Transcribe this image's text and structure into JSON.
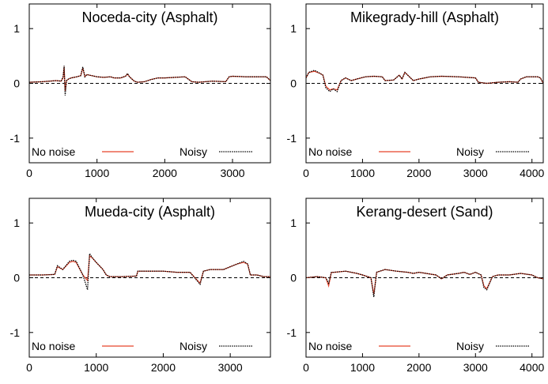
{
  "chart_data": [
    {
      "type": "line",
      "title": "Noceda-city (Asphalt)",
      "xlim": [
        0,
        3560
      ],
      "ylim": [
        -1.45,
        1.45
      ],
      "xticks": [
        0,
        1000,
        2000,
        3000
      ],
      "yticks": [
        1,
        0,
        -1
      ],
      "zero_line": true,
      "legend_position": "bottom",
      "series": [
        {
          "name": "No noise",
          "color": "#e8432a",
          "style": "solid",
          "x": [
            0,
            200,
            400,
            470,
            500,
            515,
            530,
            550,
            580,
            620,
            700,
            760,
            790,
            820,
            850,
            1000,
            1100,
            1200,
            1250,
            1350,
            1420,
            1450,
            1480,
            1550,
            1600,
            1700,
            1800,
            1900,
            2000,
            2300,
            2400,
            2500,
            2700,
            2900,
            2950,
            3000,
            3200,
            3400,
            3500,
            3560
          ],
          "y": [
            0.02,
            0.03,
            0.05,
            0.04,
            0.1,
            0.3,
            -0.15,
            0.05,
            0.08,
            0.1,
            0.12,
            0.14,
            0.28,
            0.12,
            0.16,
            0.12,
            0.11,
            0.12,
            0.1,
            0.1,
            0.13,
            0.17,
            0.12,
            0.04,
            0.02,
            0.03,
            0.07,
            0.1,
            0.1,
            0.12,
            0.03,
            0.02,
            0.04,
            0.03,
            0.12,
            0.13,
            0.12,
            0.12,
            0.12,
            0.05
          ]
        },
        {
          "name": "Noisy",
          "color": "#000000",
          "style": "dotted",
          "x": [
            0,
            200,
            400,
            470,
            500,
            515,
            530,
            550,
            580,
            620,
            700,
            760,
            790,
            820,
            850,
            1000,
            1100,
            1200,
            1250,
            1350,
            1420,
            1450,
            1480,
            1550,
            1600,
            1700,
            1800,
            1900,
            2000,
            2300,
            2400,
            2500,
            2700,
            2900,
            2950,
            3000,
            3200,
            3400,
            3500,
            3560
          ],
          "y": [
            0.02,
            0.03,
            0.05,
            0.04,
            0.12,
            0.32,
            -0.22,
            0.05,
            0.08,
            0.1,
            0.12,
            0.14,
            0.3,
            0.12,
            0.16,
            0.12,
            0.11,
            0.12,
            0.1,
            0.1,
            0.13,
            0.18,
            0.12,
            0.04,
            0.02,
            0.03,
            0.07,
            0.1,
            0.1,
            0.12,
            0.03,
            0.02,
            0.04,
            0.03,
            0.12,
            0.13,
            0.12,
            0.12,
            0.12,
            0.05
          ]
        }
      ]
    },
    {
      "type": "line",
      "title": "Mikegrady-hill (Asphalt)",
      "xlim": [
        0,
        4200
      ],
      "ylim": [
        -1.45,
        1.45
      ],
      "xticks": [
        0,
        1000,
        2000,
        3000,
        4000
      ],
      "yticks": [
        1,
        0,
        -1
      ],
      "zero_line": true,
      "legend_position": "bottom",
      "series": [
        {
          "name": "No noise",
          "color": "#e8432a",
          "style": "solid",
          "x": [
            0,
            50,
            150,
            250,
            300,
            350,
            420,
            480,
            550,
            620,
            700,
            800,
            900,
            1050,
            1200,
            1350,
            1400,
            1550,
            1650,
            1700,
            1750,
            1800,
            1900,
            2000,
            2100,
            2200,
            2400,
            2700,
            3000,
            3050,
            3200,
            3400,
            3600,
            3750,
            3800,
            3900,
            4000,
            4100,
            4150,
            4200
          ],
          "y": [
            0.1,
            0.2,
            0.22,
            0.18,
            0.15,
            -0.05,
            -0.12,
            -0.1,
            -0.12,
            0.05,
            0.1,
            0.05,
            0.08,
            0.12,
            0.13,
            0.12,
            0.05,
            0.06,
            0.15,
            0.08,
            0.2,
            0.15,
            0.05,
            0.08,
            0.1,
            0.12,
            0.13,
            0.12,
            0.1,
            0.02,
            0.0,
            0.02,
            0.03,
            0.02,
            0.08,
            0.12,
            0.12,
            0.12,
            0.1,
            0.0
          ]
        },
        {
          "name": "Noisy",
          "color": "#000000",
          "style": "dotted",
          "x": [
            0,
            50,
            150,
            250,
            300,
            350,
            420,
            480,
            550,
            620,
            700,
            800,
            900,
            1050,
            1200,
            1350,
            1400,
            1550,
            1650,
            1700,
            1750,
            1800,
            1900,
            2000,
            2100,
            2200,
            2400,
            2700,
            3000,
            3050,
            3200,
            3400,
            3600,
            3750,
            3800,
            3900,
            4000,
            4100,
            4150,
            4200
          ],
          "y": [
            0.1,
            0.2,
            0.24,
            0.18,
            0.15,
            -0.08,
            -0.15,
            -0.1,
            -0.15,
            0.05,
            0.1,
            0.05,
            0.08,
            0.12,
            0.13,
            0.12,
            0.05,
            0.06,
            0.15,
            0.08,
            0.2,
            0.15,
            0.05,
            0.08,
            0.1,
            0.12,
            0.13,
            0.12,
            0.1,
            0.02,
            0.0,
            0.02,
            0.03,
            0.02,
            0.08,
            0.12,
            0.12,
            0.12,
            0.1,
            0.0
          ]
        }
      ]
    },
    {
      "type": "line",
      "title": "Mueda-city (Asphalt)",
      "xlim": [
        0,
        3600
      ],
      "ylim": [
        -1.45,
        1.45
      ],
      "xticks": [
        0,
        1000,
        2000,
        3000
      ],
      "yticks": [
        1,
        0,
        -1
      ],
      "zero_line": true,
      "legend_position": "bottom",
      "series": [
        {
          "name": "No noise",
          "color": "#e8432a",
          "style": "solid",
          "x": [
            0,
            200,
            380,
            420,
            500,
            600,
            650,
            700,
            800,
            870,
            900,
            950,
            1000,
            1100,
            1150,
            1200,
            1400,
            1600,
            1620,
            1800,
            2000,
            2200,
            2400,
            2550,
            2600,
            2700,
            2900,
            3000,
            3100,
            3200,
            3260,
            3300,
            3400,
            3500,
            3600
          ],
          "y": [
            0.05,
            0.05,
            0.06,
            0.2,
            0.15,
            0.28,
            0.3,
            0.28,
            0.05,
            -0.05,
            0.4,
            0.35,
            0.28,
            0.15,
            0.05,
            0.02,
            0.02,
            0.03,
            0.12,
            0.12,
            0.12,
            0.1,
            0.1,
            -0.1,
            0.12,
            0.15,
            0.15,
            0.2,
            0.25,
            0.28,
            0.25,
            0.05,
            0.05,
            0.02,
            0.02
          ]
        },
        {
          "name": "Noisy",
          "color": "#000000",
          "style": "dotted",
          "x": [
            0,
            200,
            380,
            420,
            500,
            600,
            650,
            700,
            800,
            870,
            900,
            950,
            1000,
            1100,
            1150,
            1200,
            1400,
            1600,
            1620,
            1800,
            2000,
            2200,
            2400,
            2550,
            2600,
            2700,
            2900,
            3000,
            3100,
            3200,
            3260,
            3300,
            3400,
            3500,
            3600
          ],
          "y": [
            0.05,
            0.05,
            0.06,
            0.22,
            0.15,
            0.3,
            0.32,
            0.3,
            0.05,
            -0.22,
            0.44,
            0.35,
            0.28,
            0.15,
            0.05,
            0.02,
            0.02,
            0.03,
            0.12,
            0.12,
            0.12,
            0.1,
            0.1,
            -0.12,
            0.12,
            0.15,
            0.15,
            0.2,
            0.25,
            0.3,
            0.25,
            0.05,
            0.05,
            0.02,
            0.02
          ]
        }
      ]
    },
    {
      "type": "line",
      "title": "Kerang-desert (Sand)",
      "xlim": [
        0,
        4200
      ],
      "ylim": [
        -1.45,
        1.45
      ],
      "xticks": [
        0,
        1000,
        2000,
        3000,
        4000
      ],
      "yticks": [
        1,
        0,
        -1
      ],
      "zero_line": true,
      "legend_position": "bottom",
      "series": [
        {
          "name": "No noise",
          "color": "#e8432a",
          "style": "solid",
          "x": [
            0,
            200,
            350,
            400,
            450,
            500,
            700,
            900,
            1000,
            1150,
            1200,
            1250,
            1400,
            1600,
            1800,
            1900,
            2000,
            2300,
            2400,
            2500,
            2700,
            2800,
            2900,
            3000,
            3100,
            3150,
            3200,
            3300,
            3400,
            3600,
            3800,
            4000,
            4100,
            4200
          ],
          "y": [
            0.0,
            0.02,
            0.0,
            -0.15,
            0.1,
            0.1,
            0.12,
            0.08,
            0.05,
            0.0,
            -0.3,
            0.1,
            0.15,
            0.12,
            0.1,
            0.08,
            0.1,
            0.05,
            -0.02,
            0.05,
            0.08,
            0.1,
            0.06,
            0.1,
            0.05,
            -0.15,
            -0.2,
            0.02,
            0.05,
            0.05,
            0.08,
            0.05,
            0.0,
            -0.02
          ]
        },
        {
          "name": "Noisy",
          "color": "#000000",
          "style": "dotted",
          "x": [
            0,
            200,
            350,
            400,
            450,
            500,
            700,
            900,
            1000,
            1150,
            1200,
            1250,
            1400,
            1600,
            1800,
            1900,
            2000,
            2300,
            2400,
            2500,
            2700,
            2800,
            2900,
            3000,
            3100,
            3150,
            3200,
            3300,
            3400,
            3600,
            3800,
            4000,
            4100,
            4200
          ],
          "y": [
            0.0,
            0.02,
            0.0,
            -0.1,
            0.1,
            0.1,
            0.12,
            0.08,
            0.05,
            0.0,
            -0.35,
            0.1,
            0.15,
            0.12,
            0.1,
            0.08,
            0.1,
            0.05,
            -0.02,
            0.05,
            0.08,
            0.1,
            0.06,
            0.1,
            0.05,
            -0.18,
            -0.22,
            0.02,
            0.05,
            0.05,
            0.08,
            0.05,
            0.0,
            -0.02
          ]
        }
      ]
    }
  ]
}
